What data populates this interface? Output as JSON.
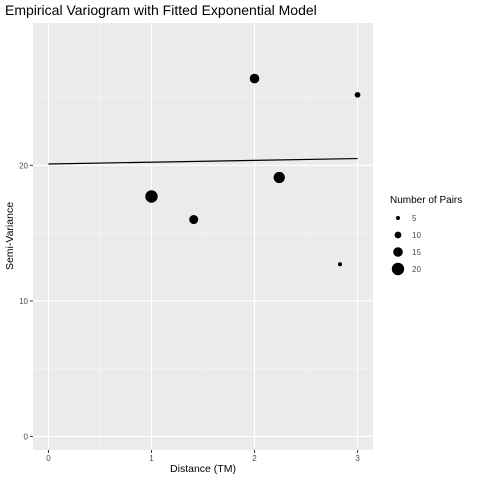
{
  "chart_data": {
    "type": "scatter",
    "title": "Empirical Variogram with Fitted Exponential Model",
    "xlabel": "Distance (TM)",
    "ylabel": "Semi-Variance",
    "xlim": [
      -0.15,
      3.15
    ],
    "ylim": [
      -1.0,
      30.5
    ],
    "x_ticks": [
      0,
      1,
      2,
      3
    ],
    "x_tick_labels": [
      "0",
      "1",
      "2",
      "3"
    ],
    "y_ticks": [
      0,
      10,
      20
    ],
    "y_tick_labels": [
      "0",
      "10",
      "20"
    ],
    "grid": true,
    "series": [
      {
        "kind": "points",
        "points": [
          {
            "x": 1.0,
            "y": 17.7,
            "pairs": 20
          },
          {
            "x": 1.41,
            "y": 16.0,
            "pairs": 14
          },
          {
            "x": 2.0,
            "y": 26.4,
            "pairs": 15
          },
          {
            "x": 2.24,
            "y": 19.1,
            "pairs": 18
          },
          {
            "x": 2.83,
            "y": 12.7,
            "pairs": 5
          },
          {
            "x": 3.0,
            "y": 25.2,
            "pairs": 8
          }
        ]
      },
      {
        "kind": "line",
        "x": [
          0,
          3
        ],
        "y": [
          20.1,
          20.5
        ]
      }
    ],
    "legend": {
      "title": "Number of Pairs",
      "position": "right",
      "sizes": [
        5,
        10,
        15,
        20
      ],
      "labels": [
        "5",
        "10",
        "15",
        "20"
      ]
    },
    "colors": {
      "panel": "#ebebeb",
      "grid_major": "#ffffff",
      "points": "#000000",
      "line": "#000000"
    }
  }
}
